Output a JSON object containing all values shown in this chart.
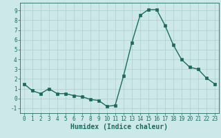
{
  "x": [
    0,
    1,
    2,
    3,
    4,
    5,
    6,
    7,
    8,
    9,
    10,
    11,
    12,
    13,
    14,
    15,
    16,
    17,
    18,
    19,
    20,
    21,
    22,
    23
  ],
  "y": [
    1.5,
    0.8,
    0.5,
    1.0,
    0.5,
    0.5,
    0.3,
    0.2,
    -0.1,
    -0.2,
    -0.8,
    -0.7,
    2.3,
    5.7,
    8.5,
    9.1,
    9.1,
    7.5,
    5.5,
    4.0,
    3.2,
    3.0,
    2.1,
    1.5
  ],
  "bg_color": "#cce8e8",
  "line_color": "#1a6b5e",
  "marker_color": "#1a6b5e",
  "grid_color": "#aacfcf",
  "xlabel": "Humidex (Indice chaleur)",
  "xlim": [
    -0.5,
    23.5
  ],
  "ylim": [
    -1.5,
    9.8
  ],
  "yticks": [
    -1,
    0,
    1,
    2,
    3,
    4,
    5,
    6,
    7,
    8,
    9
  ],
  "xticks": [
    0,
    1,
    2,
    3,
    4,
    5,
    6,
    7,
    8,
    9,
    10,
    11,
    12,
    13,
    14,
    15,
    16,
    17,
    18,
    19,
    20,
    21,
    22,
    23
  ],
  "tick_label_fontsize": 5.5,
  "xlabel_fontsize": 7.0,
  "line_width": 1.0,
  "marker_size": 2.5
}
